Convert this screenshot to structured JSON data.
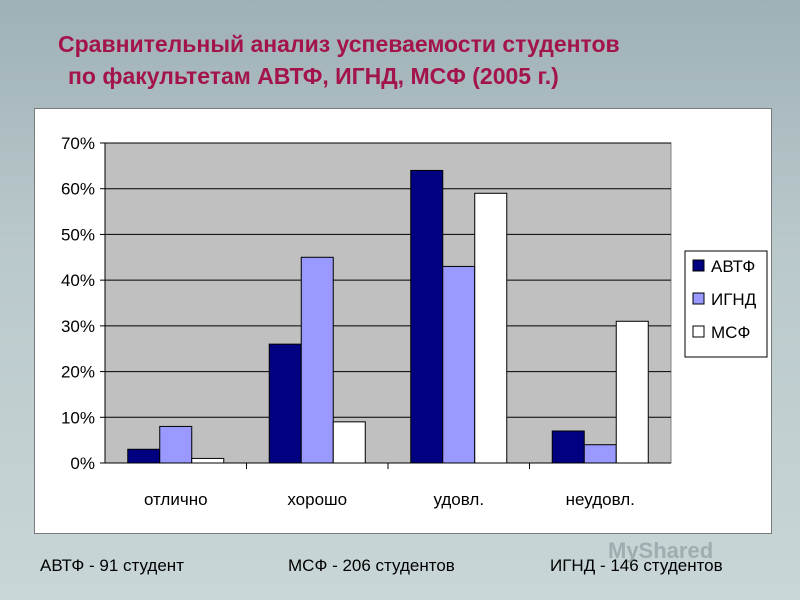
{
  "slide": {
    "title_line1": "Сравнительный анализ успеваемости студентов",
    "title_line2": "по факультетам АВТФ, ИГНД, МСФ (2005 г.)"
  },
  "footer": {
    "avtf": "АВТФ - 91 студент",
    "msf": "МСФ - 206 студентов",
    "ignd": "ИГНД - 146 студентов"
  },
  "watermark": "MyShared",
  "chart_data": {
    "type": "bar",
    "categories": [
      "отлично",
      "хорошо",
      "удовл.",
      "неудовл."
    ],
    "series": [
      {
        "name": "АВТФ",
        "values": [
          3,
          26,
          64,
          7
        ],
        "color": "#000080"
      },
      {
        "name": "ИГНД",
        "values": [
          8,
          45,
          43,
          4
        ],
        "color": "#9999ff"
      },
      {
        "name": "МСФ",
        "values": [
          1,
          9,
          59,
          31
        ],
        "color": "#ffffff"
      }
    ],
    "y_ticks": [
      "0%",
      "10%",
      "20%",
      "30%",
      "40%",
      "50%",
      "60%",
      "70%"
    ],
    "ylim": [
      0,
      70
    ],
    "grid": true,
    "legend_position": "right",
    "plot_background": "#c0c0c0"
  }
}
